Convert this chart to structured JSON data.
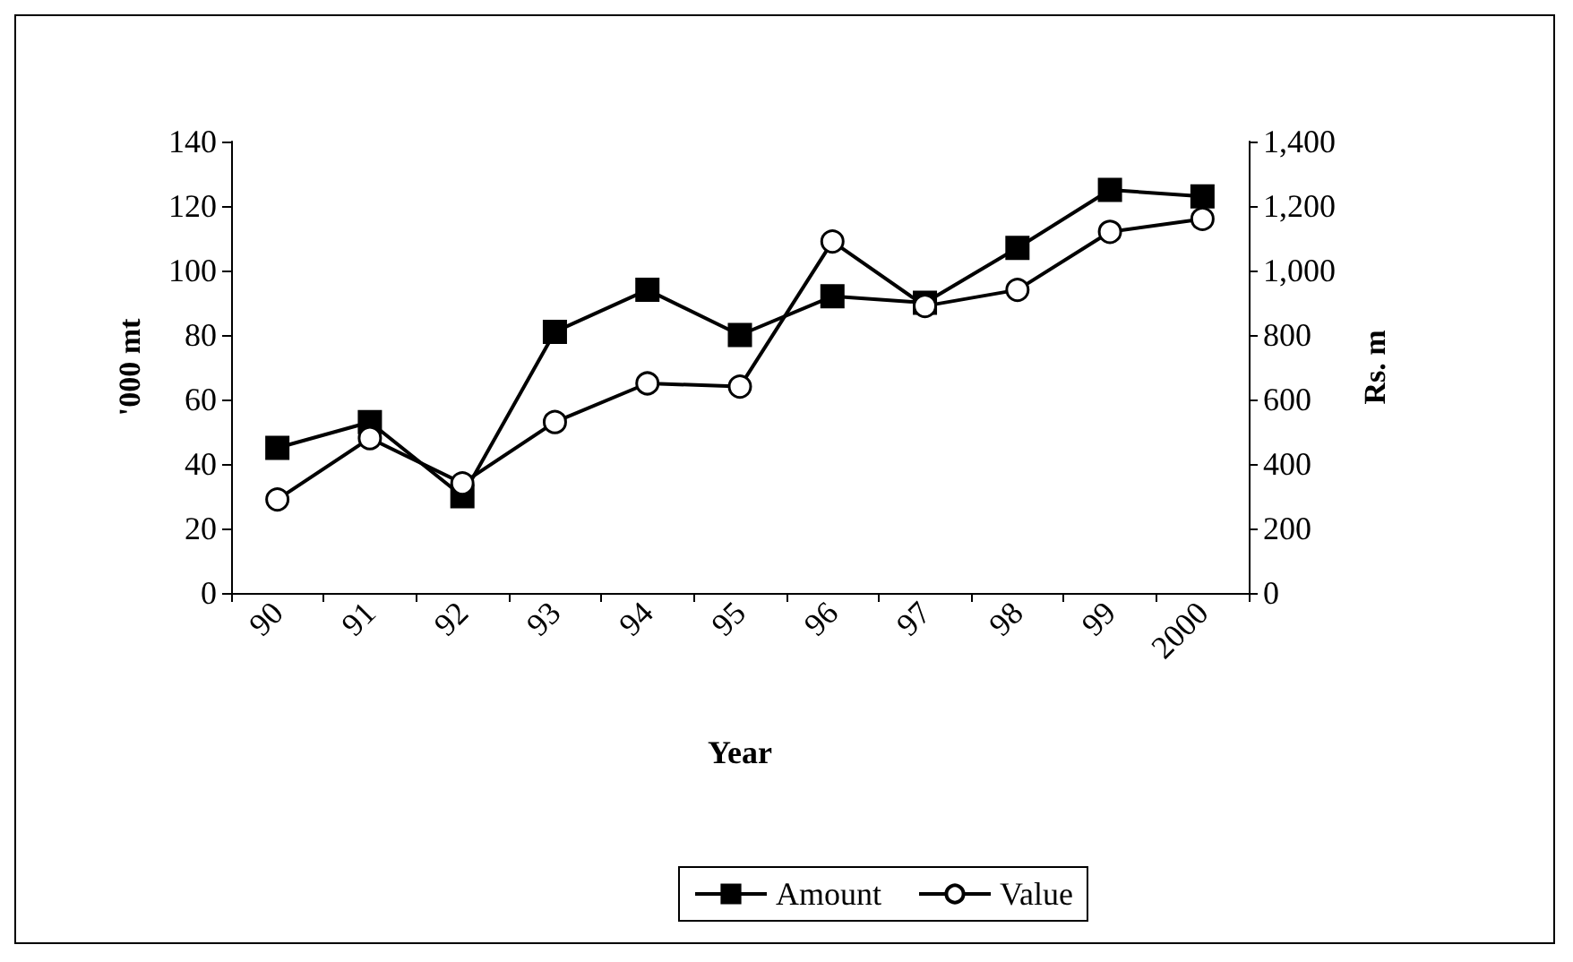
{
  "chart_data": {
    "type": "line",
    "xlabel": "Year",
    "ylabel": "'000 mt",
    "y2label": "Rs. m",
    "categories": [
      "90",
      "91",
      "92",
      "93",
      "94",
      "95",
      "96",
      "97",
      "98",
      "99",
      "2000"
    ],
    "series": [
      {
        "name": "Amount",
        "color": "#000000",
        "marker": "square",
        "values": [
          45,
          53,
          30,
          81,
          94,
          80,
          92,
          90,
          107,
          125,
          123
        ]
      },
      {
        "name": "Value",
        "color": "#000000",
        "marker": "circle",
        "axis": "y2",
        "values": [
          290,
          480,
          340,
          530,
          650,
          640,
          1090,
          890,
          940,
          1120,
          1160
        ]
      }
    ],
    "ylim": [
      0,
      140
    ],
    "yticks": [
      0,
      20,
      40,
      60,
      80,
      100,
      120,
      140
    ],
    "y2lim": [
      0,
      1400
    ],
    "y2ticks": [
      0,
      {
        "value": 200,
        "label": "200"
      },
      {
        "value": 400,
        "label": "400"
      },
      {
        "value": 600,
        "label": "600"
      },
      {
        "value": 800,
        "label": "800"
      },
      {
        "value": 1000,
        "label": "1,000"
      },
      {
        "value": 1200,
        "label": "1,200"
      },
      {
        "value": 1400,
        "label": "1,400"
      }
    ],
    "grid": false,
    "legend": "bottom",
    "line_style": "solid"
  }
}
